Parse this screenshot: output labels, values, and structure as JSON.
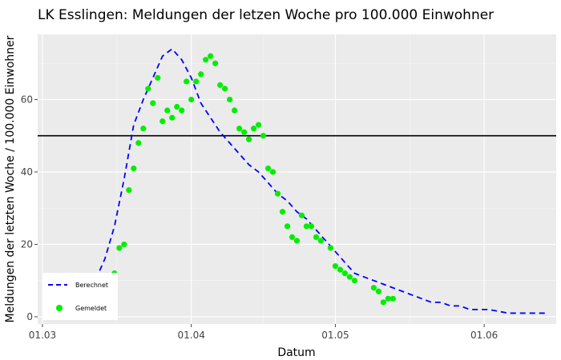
{
  "chart_data": {
    "type": "scatter",
    "title": "LK Esslingen: Meldungen der letzen Woche pro 100.000 Einwohner",
    "xlabel": "Datum",
    "ylabel": "Meldungen der letzten Woche / 100.000 Einwohner",
    "x_ticks": [
      "01.03",
      "01.04",
      "01.05",
      "01.06"
    ],
    "y_ticks": [
      0,
      20,
      40,
      60
    ],
    "xlim": [
      "2020-02-29",
      "2020-06-16"
    ],
    "ylim": [
      -2,
      78
    ],
    "threshold_line": 50,
    "grid": true,
    "legend_position": "bottom-left",
    "series": [
      {
        "name": "Berechnet",
        "style": "dashed-line",
        "color": "#0000ff",
        "points": [
          [
            "2020-03-06",
            0
          ],
          [
            "2020-03-08",
            2
          ],
          [
            "2020-03-10",
            6
          ],
          [
            "2020-03-12",
            10
          ],
          [
            "2020-03-14",
            16
          ],
          [
            "2020-03-16",
            25
          ],
          [
            "2020-03-18",
            38
          ],
          [
            "2020-03-20",
            53
          ],
          [
            "2020-03-22",
            60
          ],
          [
            "2020-03-24",
            66
          ],
          [
            "2020-03-26",
            72
          ],
          [
            "2020-03-28",
            74
          ],
          [
            "2020-03-30",
            71
          ],
          [
            "2020-04-01",
            66
          ],
          [
            "2020-04-03",
            59
          ],
          [
            "2020-04-05",
            55
          ],
          [
            "2020-04-07",
            51
          ],
          [
            "2020-04-09",
            48
          ],
          [
            "2020-04-11",
            45
          ],
          [
            "2020-04-13",
            42
          ],
          [
            "2020-04-15",
            40
          ],
          [
            "2020-04-17",
            37
          ],
          [
            "2020-04-19",
            34
          ],
          [
            "2020-04-21",
            32
          ],
          [
            "2020-04-23",
            29
          ],
          [
            "2020-04-25",
            27
          ],
          [
            "2020-04-27",
            24
          ],
          [
            "2020-04-29",
            21
          ],
          [
            "2020-05-01",
            18
          ],
          [
            "2020-05-03",
            15
          ],
          [
            "2020-05-05",
            12
          ],
          [
            "2020-05-07",
            11
          ],
          [
            "2020-05-09",
            10
          ],
          [
            "2020-05-11",
            9
          ],
          [
            "2020-05-13",
            8
          ],
          [
            "2020-05-15",
            7
          ],
          [
            "2020-05-17",
            6
          ],
          [
            "2020-05-19",
            5
          ],
          [
            "2020-05-21",
            4
          ],
          [
            "2020-05-23",
            4
          ],
          [
            "2020-05-25",
            3
          ],
          [
            "2020-05-27",
            3
          ],
          [
            "2020-05-29",
            2
          ],
          [
            "2020-06-02",
            2
          ],
          [
            "2020-06-06",
            1
          ],
          [
            "2020-06-10",
            1
          ],
          [
            "2020-06-14",
            1
          ]
        ]
      },
      {
        "name": "Gemeldet",
        "style": "points",
        "color": "#00ee00",
        "points": [
          [
            "2020-03-16",
            12
          ],
          [
            "2020-03-17",
            19
          ],
          [
            "2020-03-18",
            20
          ],
          [
            "2020-03-19",
            35
          ],
          [
            "2020-03-20",
            41
          ],
          [
            "2020-03-21",
            48
          ],
          [
            "2020-03-22",
            52
          ],
          [
            "2020-03-23",
            63
          ],
          [
            "2020-03-24",
            59
          ],
          [
            "2020-03-25",
            66
          ],
          [
            "2020-03-26",
            54
          ],
          [
            "2020-03-27",
            57
          ],
          [
            "2020-03-28",
            55
          ],
          [
            "2020-03-29",
            58
          ],
          [
            "2020-03-30",
            57
          ],
          [
            "2020-03-31",
            65
          ],
          [
            "2020-04-01",
            60
          ],
          [
            "2020-04-02",
            65
          ],
          [
            "2020-04-03",
            67
          ],
          [
            "2020-04-04",
            71
          ],
          [
            "2020-04-05",
            72
          ],
          [
            "2020-04-06",
            70
          ],
          [
            "2020-04-07",
            64
          ],
          [
            "2020-04-08",
            63
          ],
          [
            "2020-04-09",
            60
          ],
          [
            "2020-04-10",
            57
          ],
          [
            "2020-04-11",
            52
          ],
          [
            "2020-04-12",
            51
          ],
          [
            "2020-04-13",
            49
          ],
          [
            "2020-04-14",
            52
          ],
          [
            "2020-04-15",
            53
          ],
          [
            "2020-04-16",
            50
          ],
          [
            "2020-04-17",
            41
          ],
          [
            "2020-04-18",
            40
          ],
          [
            "2020-04-19",
            34
          ],
          [
            "2020-04-20",
            29
          ],
          [
            "2020-04-21",
            25
          ],
          [
            "2020-04-22",
            22
          ],
          [
            "2020-04-23",
            21
          ],
          [
            "2020-04-24",
            28
          ],
          [
            "2020-04-25",
            25
          ],
          [
            "2020-04-26",
            25
          ],
          [
            "2020-04-27",
            22
          ],
          [
            "2020-04-28",
            21
          ],
          [
            "2020-04-30",
            19
          ],
          [
            "2020-05-01",
            14
          ],
          [
            "2020-05-02",
            13
          ],
          [
            "2020-05-03",
            12
          ],
          [
            "2020-05-04",
            11
          ],
          [
            "2020-05-05",
            10
          ],
          [
            "2020-05-09",
            8
          ],
          [
            "2020-05-10",
            7
          ],
          [
            "2020-05-11",
            4
          ],
          [
            "2020-05-12",
            5
          ],
          [
            "2020-05-13",
            5
          ]
        ]
      }
    ]
  }
}
